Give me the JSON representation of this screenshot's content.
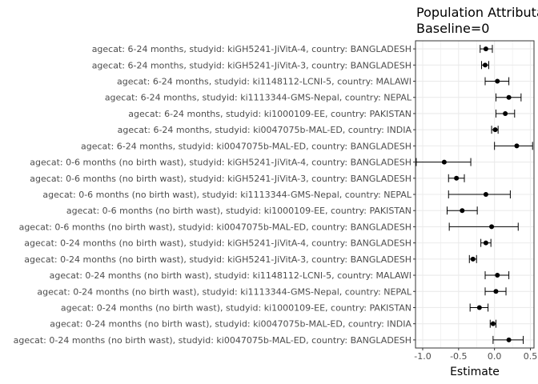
{
  "chart_data": {
    "type": "forest",
    "title_lines": [
      "Population Attributable",
      "Baseline=0"
    ],
    "xlabel": "Estimate",
    "ylabel": "",
    "xlim": [
      -1.1,
      0.55
    ],
    "x_ticks": [
      -1.0,
      -0.5,
      0.0,
      0.5
    ],
    "x_tick_labels": [
      "-1.0",
      "-0.5",
      "0.0",
      "0.5"
    ],
    "grid": true,
    "reference_line": 0,
    "colors": {
      "point": "#000000",
      "grid": "#ebebeb",
      "panel_border": "#333333"
    },
    "rows": [
      {
        "label": "agecat: 6-24 months, studyid: kiGH5241-JiVitA-4, country: BANGLADESH",
        "estimate": -0.12,
        "lower": -0.2,
        "upper": -0.03
      },
      {
        "label": "agecat: 6-24 months, studyid: kiGH5241-JiVitA-3, country: BANGLADESH",
        "estimate": -0.13,
        "lower": -0.18,
        "upper": -0.08
      },
      {
        "label": "agecat: 6-24 months, studyid: ki1148112-LCNI-5, country: MALAWI",
        "estimate": 0.04,
        "lower": -0.13,
        "upper": 0.2
      },
      {
        "label": "agecat: 6-24 months, studyid: ki1113344-GMS-Nepal, country: NEPAL",
        "estimate": 0.2,
        "lower": 0.02,
        "upper": 0.37
      },
      {
        "label": "agecat: 6-24 months, studyid: ki1000109-EE, country: PAKISTAN",
        "estimate": 0.15,
        "lower": 0.02,
        "upper": 0.28
      },
      {
        "label": "agecat: 6-24 months, studyid: ki0047075b-MAL-ED, country: INDIA",
        "estimate": 0.01,
        "lower": -0.04,
        "upper": 0.05
      },
      {
        "label": "agecat: 6-24 months, studyid: ki0047075b-MAL-ED, country: BANGLADESH",
        "estimate": 0.31,
        "lower": 0.0,
        "upper": 0.53
      },
      {
        "label": "agecat: 0-6 months (no birth wast), studyid: kiGH5241-JiVitA-4, country: BANGLADESH",
        "estimate": -0.7,
        "lower": -1.09,
        "upper": -0.33
      },
      {
        "label": "agecat: 0-6 months (no birth wast), studyid: kiGH5241-JiVitA-3, country: BANGLADESH",
        "estimate": -0.53,
        "lower": -0.64,
        "upper": -0.42
      },
      {
        "label": "agecat: 0-6 months (no birth wast), studyid: ki1113344-GMS-Nepal, country: NEPAL",
        "estimate": -0.12,
        "lower": -0.64,
        "upper": 0.22
      },
      {
        "label": "agecat: 0-6 months (no birth wast), studyid: ki1000109-EE, country: PAKISTAN",
        "estimate": -0.45,
        "lower": -0.66,
        "upper": -0.24
      },
      {
        "label": "agecat: 0-6 months (no birth wast), studyid: ki0047075b-MAL-ED, country: BANGLADESH",
        "estimate": -0.04,
        "lower": -0.63,
        "upper": 0.33
      },
      {
        "label": "agecat: 0-24 months (no birth wast), studyid: kiGH5241-JiVitA-4, country: BANGLADESH",
        "estimate": -0.12,
        "lower": -0.19,
        "upper": -0.05
      },
      {
        "label": "agecat: 0-24 months (no birth wast), studyid: kiGH5241-JiVitA-3, country: BANGLADESH",
        "estimate": -0.3,
        "lower": -0.35,
        "upper": -0.25
      },
      {
        "label": "agecat: 0-24 months (no birth wast), studyid: ki1148112-LCNI-5, country: MALAWI",
        "estimate": 0.04,
        "lower": -0.13,
        "upper": 0.2
      },
      {
        "label": "agecat: 0-24 months (no birth wast), studyid: ki1113344-GMS-Nepal, country: NEPAL",
        "estimate": 0.02,
        "lower": -0.13,
        "upper": 0.16
      },
      {
        "label": "agecat: 0-24 months (no birth wast), studyid: ki1000109-EE, country: PAKISTAN",
        "estimate": -0.21,
        "lower": -0.34,
        "upper": -0.09
      },
      {
        "label": "agecat: 0-24 months (no birth wast), studyid: ki0047075b-MAL-ED, country: INDIA",
        "estimate": -0.02,
        "lower": -0.06,
        "upper": 0.02
      },
      {
        "label": "agecat: 0-24 months (no birth wast), studyid: ki0047075b-MAL-ED, country: BANGLADESH",
        "estimate": 0.2,
        "lower": -0.02,
        "upper": 0.4
      }
    ]
  }
}
